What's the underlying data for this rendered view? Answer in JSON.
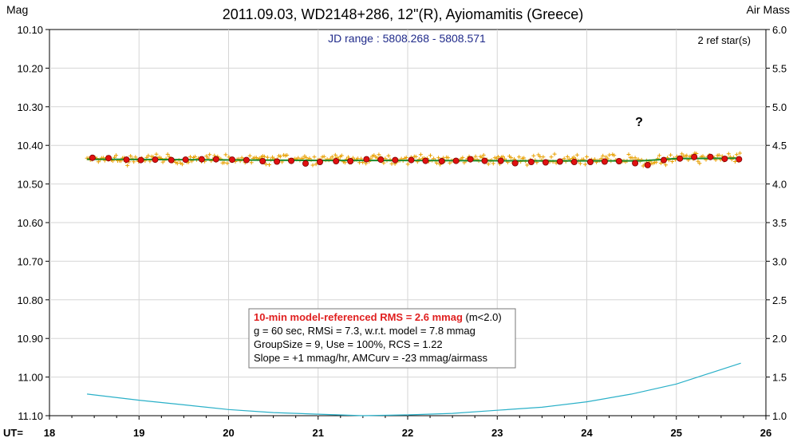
{
  "chart_data": {
    "type": "scatter",
    "title": "2011.09.03, WD2148+286, 12\"(R), Ayiomamitis (Greece)",
    "ylabel_left": "Mag",
    "ylabel_right": "Air Mass",
    "xlabel": "UT=",
    "jd_range": "JD range : 5808.268 - 5808.571",
    "ref_stars": "2 ref star(s)",
    "annotation": "?",
    "xlim": [
      18,
      26
    ],
    "ylim_left": [
      10.1,
      11.1
    ],
    "ylim_right": [
      1.0,
      6.0
    ],
    "xticks": [
      "18",
      "19",
      "20",
      "21",
      "22",
      "23",
      "24",
      "25",
      "26"
    ],
    "yticks_left": [
      "10.10",
      "10.20",
      "10.30",
      "10.40",
      "10.50",
      "10.60",
      "10.70",
      "10.80",
      "10.90",
      "11.00",
      "11.10"
    ],
    "yticks_right": [
      "6.0",
      "5.5",
      "5.0",
      "4.5",
      "4.0",
      "3.5",
      "3.0",
      "2.5",
      "2.0",
      "1.5",
      "1.0"
    ],
    "grid": true,
    "series": [
      {
        "role": "raw",
        "color": "#e8a000",
        "x_range": [
          18.42,
          25.72
        ],
        "center_mag": 10.437
      },
      {
        "role": "binned",
        "color": "#e01010",
        "points": [
          [
            18.48,
            10.432
          ],
          [
            18.66,
            10.433
          ],
          [
            18.86,
            10.437
          ],
          [
            19.02,
            10.438
          ],
          [
            19.18,
            10.437
          ],
          [
            19.36,
            10.438
          ],
          [
            19.52,
            10.437
          ],
          [
            19.7,
            10.436
          ],
          [
            19.86,
            10.436
          ],
          [
            20.04,
            10.437
          ],
          [
            20.2,
            10.438
          ],
          [
            20.38,
            10.441
          ],
          [
            20.54,
            10.442
          ],
          [
            20.7,
            10.44
          ],
          [
            20.86,
            10.447
          ],
          [
            21.02,
            10.443
          ],
          [
            21.2,
            10.441
          ],
          [
            21.36,
            10.441
          ],
          [
            21.54,
            10.436
          ],
          [
            21.7,
            10.437
          ],
          [
            21.86,
            10.438
          ],
          [
            22.04,
            10.438
          ],
          [
            22.2,
            10.44
          ],
          [
            22.38,
            10.441
          ],
          [
            22.54,
            10.44
          ],
          [
            22.7,
            10.436
          ],
          [
            22.86,
            10.44
          ],
          [
            23.04,
            10.44
          ],
          [
            23.2,
            10.446
          ],
          [
            23.38,
            10.443
          ],
          [
            23.54,
            10.444
          ],
          [
            23.7,
            10.442
          ],
          [
            23.86,
            10.443
          ],
          [
            24.04,
            10.443
          ],
          [
            24.2,
            10.442
          ],
          [
            24.36,
            10.441
          ],
          [
            24.54,
            10.446
          ],
          [
            24.68,
            10.451
          ],
          [
            24.86,
            10.438
          ],
          [
            25.04,
            10.434
          ],
          [
            25.2,
            10.43
          ],
          [
            25.38,
            10.43
          ],
          [
            25.54,
            10.435
          ],
          [
            25.7,
            10.436
          ]
        ]
      },
      {
        "role": "model",
        "color": "#1d8a2a",
        "points": [
          [
            18.42,
            10.436
          ],
          [
            19.5,
            10.437
          ],
          [
            21.0,
            10.439
          ],
          [
            22.0,
            10.439
          ],
          [
            23.5,
            10.44
          ],
          [
            24.6,
            10.44
          ],
          [
            25.0,
            10.434
          ],
          [
            25.72,
            10.433
          ]
        ]
      },
      {
        "role": "airmass",
        "axis": "right",
        "color": "#2ab0c8",
        "points": [
          [
            18.42,
            1.28
          ],
          [
            19.0,
            1.2
          ],
          [
            19.5,
            1.14
          ],
          [
            20.0,
            1.08
          ],
          [
            20.5,
            1.04
          ],
          [
            21.0,
            1.02
          ],
          [
            21.5,
            1.0
          ],
          [
            22.0,
            1.01
          ],
          [
            22.5,
            1.03
          ],
          [
            23.0,
            1.07
          ],
          [
            23.5,
            1.11
          ],
          [
            24.0,
            1.18
          ],
          [
            24.5,
            1.28
          ],
          [
            25.0,
            1.41
          ],
          [
            25.72,
            1.68
          ]
        ]
      }
    ],
    "stats": {
      "line1_red": "10-min model-referenced RMS = 2.6 mmag",
      "line1_tail": " (m<2.0)",
      "line2": "g = 60 sec, RMSi = 7.3, w.r.t. model = 7.8 mmag",
      "line3": "GroupSize = 9, Use = 100%, RCS = 1.22",
      "line4": "Slope = +1 mmag/hr, AMCurv = -23 mmag/airmass"
    }
  }
}
